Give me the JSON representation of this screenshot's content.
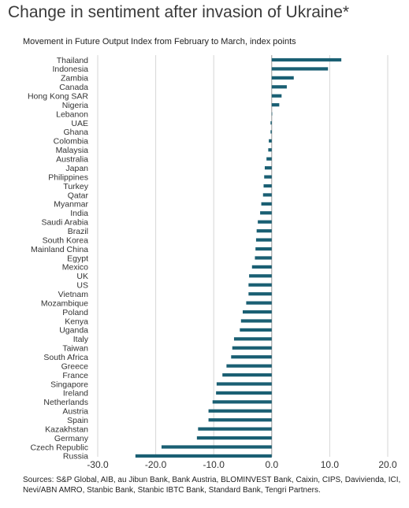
{
  "title": "Change in sentiment after invasion of Ukraine*",
  "subtitle": "Movement  in Future Output Index from February to March, index points",
  "source": "Sources: S&P Global, AIB, au Jibun Bank, Bank Austria, BLOMINVEST Bank, Caixin, CIPS, Davivienda, ICI, Nevi/ABN AMRO,  Stanbic Bank, Stanbic IBTC Bank, Standard Bank, Tengri Partners.",
  "colors": {
    "bar": "#1a5f73",
    "grid": "#d6d6d6",
    "axis": "#9a9a9a"
  },
  "chart_data": {
    "type": "bar",
    "orientation": "horizontal",
    "categories": [
      "Thailand",
      "Indonesia",
      "Zambia",
      "Canada",
      "Hong Kong SAR",
      "Nigeria",
      "Lebanon",
      "UAE",
      "Ghana",
      "Colombia",
      "Malaysia",
      "Australia",
      "Japan",
      "Philippines",
      "Turkey",
      "Qatar",
      "Myanmar",
      "India",
      "Saudi Arabia",
      "Brazil",
      "South Korea",
      "Mainland China",
      "Egypt",
      "Mexico",
      "UK",
      "US",
      "Vietnam",
      "Mozambique",
      "Poland",
      "Kenya",
      "Uganda",
      "Italy",
      "Taiwan",
      "South Africa",
      "Greece",
      "France",
      "Singapore",
      "Ireland",
      "Netherlands",
      "Austria",
      "Spain",
      "Kazakhstan",
      "Germany",
      "Czech Republic",
      "Russia"
    ],
    "values": [
      12.0,
      9.7,
      3.8,
      2.6,
      1.7,
      1.3,
      0.0,
      -0.2,
      -0.2,
      -0.5,
      -0.6,
      -0.9,
      -1.2,
      -1.3,
      -1.4,
      -1.5,
      -1.8,
      -2.0,
      -2.4,
      -2.6,
      -2.7,
      -2.8,
      -2.9,
      -3.4,
      -3.9,
      -4.0,
      -4.0,
      -4.4,
      -5.0,
      -5.3,
      -5.5,
      -6.5,
      -6.8,
      -7.0,
      -7.8,
      -8.5,
      -9.5,
      -9.6,
      -10.2,
      -10.9,
      -10.9,
      -12.7,
      -12.9,
      -19.0,
      -23.5
    ],
    "xlim": [
      -30,
      20
    ],
    "ticks": [
      "-30.0",
      "-20.0",
      "-10.0",
      "0.0",
      "10.0",
      "20.0"
    ],
    "tick_values": [
      -30,
      -20,
      -10,
      0,
      10,
      20
    ],
    "grid": true
  }
}
